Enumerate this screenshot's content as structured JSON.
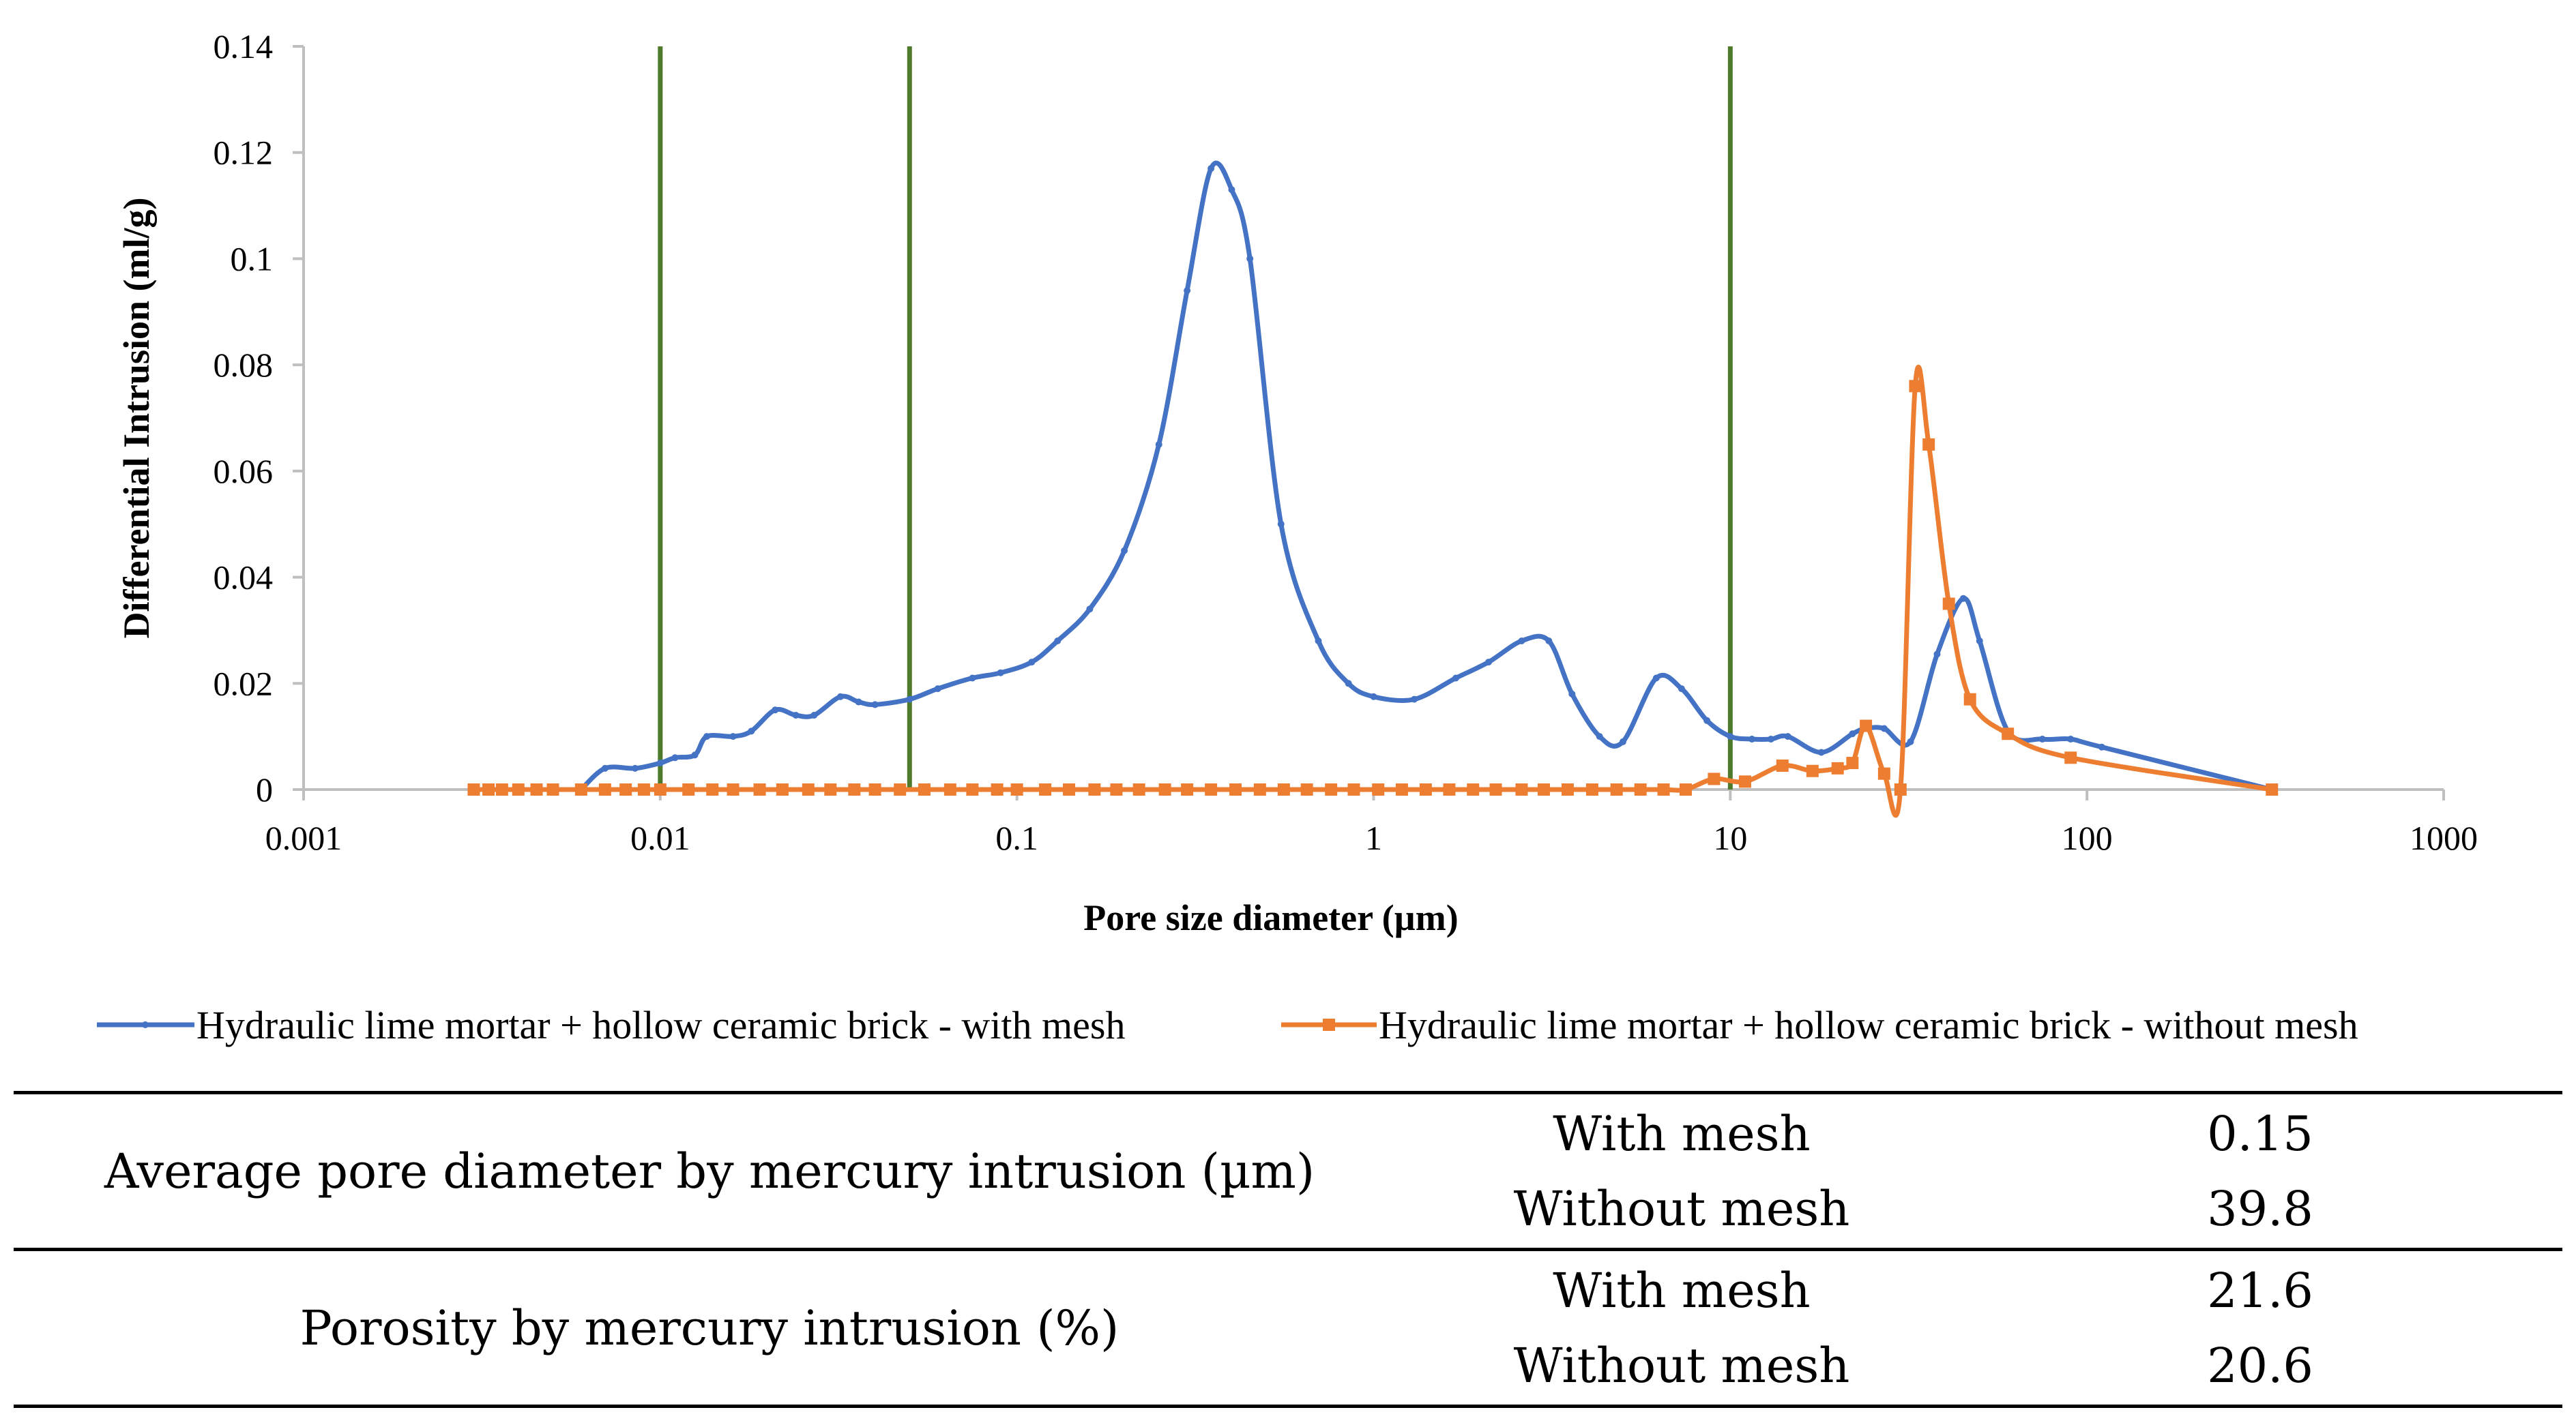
{
  "chart_data": {
    "type": "line",
    "title": "",
    "xlabel": "Pore size diameter (µm)",
    "ylabel": "Differential Intrusion  (ml/g)",
    "xscale": "log",
    "xlim": [
      0.001,
      1000
    ],
    "ylim": [
      0,
      0.14
    ],
    "x_ticks": [
      "0.001",
      "0.01",
      "0.1",
      "1",
      "10",
      "100",
      "1000"
    ],
    "y_ticks": [
      "0",
      "0.02",
      "0.04",
      "0.06",
      "0.08",
      "0.1",
      "0.12",
      "0.14"
    ],
    "grid": false,
    "legend_position": "bottom",
    "vertical_lines": [
      0.01,
      0.05,
      10
    ],
    "vertical_line_color": "#4E7A2C",
    "series": [
      {
        "name": "Hydraulic lime mortar + hollow ceramic brick - with mesh",
        "color": "#4472C4",
        "marker": "small",
        "points": [
          [
            0.006,
            0.0
          ],
          [
            0.007,
            0.004
          ],
          [
            0.0085,
            0.004
          ],
          [
            0.01,
            0.005
          ],
          [
            0.011,
            0.006
          ],
          [
            0.0125,
            0.0065
          ],
          [
            0.0135,
            0.01
          ],
          [
            0.016,
            0.01
          ],
          [
            0.018,
            0.011
          ],
          [
            0.021,
            0.015
          ],
          [
            0.024,
            0.014
          ],
          [
            0.027,
            0.014
          ],
          [
            0.032,
            0.0175
          ],
          [
            0.036,
            0.0165
          ],
          [
            0.04,
            0.016
          ],
          [
            0.05,
            0.017
          ],
          [
            0.06,
            0.019
          ],
          [
            0.075,
            0.021
          ],
          [
            0.09,
            0.022
          ],
          [
            0.11,
            0.024
          ],
          [
            0.13,
            0.028
          ],
          [
            0.16,
            0.034
          ],
          [
            0.2,
            0.045
          ],
          [
            0.25,
            0.065
          ],
          [
            0.3,
            0.094
          ],
          [
            0.35,
            0.117
          ],
          [
            0.4,
            0.113
          ],
          [
            0.45,
            0.1
          ],
          [
            0.55,
            0.05
          ],
          [
            0.7,
            0.028
          ],
          [
            0.85,
            0.02
          ],
          [
            1.0,
            0.0175
          ],
          [
            1.3,
            0.017
          ],
          [
            1.7,
            0.021
          ],
          [
            2.1,
            0.024
          ],
          [
            2.6,
            0.028
          ],
          [
            3.1,
            0.028
          ],
          [
            3.6,
            0.018
          ],
          [
            4.3,
            0.01
          ],
          [
            5.0,
            0.009
          ],
          [
            6.2,
            0.021
          ],
          [
            7.3,
            0.019
          ],
          [
            8.6,
            0.013
          ],
          [
            10.0,
            0.01
          ],
          [
            11.5,
            0.0095
          ],
          [
            13.0,
            0.0095
          ],
          [
            14.5,
            0.01
          ],
          [
            18.0,
            0.007
          ],
          [
            22.0,
            0.0105
          ],
          [
            24.0,
            0.0115
          ],
          [
            27.0,
            0.0115
          ],
          [
            32.0,
            0.009
          ],
          [
            38.0,
            0.0255
          ],
          [
            45.0,
            0.036
          ],
          [
            50.0,
            0.028
          ],
          [
            60.0,
            0.011
          ],
          [
            75.0,
            0.0095
          ],
          [
            90.0,
            0.0095
          ],
          [
            110.0,
            0.008
          ],
          [
            330.0,
            0.0
          ]
        ]
      },
      {
        "name": "Hydraulic lime mortar + hollow ceramic brick - without mesh",
        "color": "#ED7D31",
        "marker": "square",
        "points": [
          [
            0.003,
            0.0
          ],
          [
            0.0033,
            0.0
          ],
          [
            0.0036,
            0.0
          ],
          [
            0.004,
            0.0
          ],
          [
            0.0045,
            0.0
          ],
          [
            0.005,
            0.0
          ],
          [
            0.006,
            0.0
          ],
          [
            0.007,
            0.0
          ],
          [
            0.008,
            0.0
          ],
          [
            0.009,
            0.0
          ],
          [
            0.01,
            0.0
          ],
          [
            0.012,
            0.0
          ],
          [
            0.014,
            0.0
          ],
          [
            0.016,
            0.0
          ],
          [
            0.019,
            0.0
          ],
          [
            0.022,
            0.0
          ],
          [
            0.026,
            0.0
          ],
          [
            0.03,
            0.0
          ],
          [
            0.035,
            0.0
          ],
          [
            0.04,
            0.0
          ],
          [
            0.047,
            0.0
          ],
          [
            0.055,
            0.0
          ],
          [
            0.065,
            0.0
          ],
          [
            0.075,
            0.0
          ],
          [
            0.088,
            0.0
          ],
          [
            0.1,
            0.0
          ],
          [
            0.12,
            0.0
          ],
          [
            0.14,
            0.0
          ],
          [
            0.165,
            0.0
          ],
          [
            0.19,
            0.0
          ],
          [
            0.22,
            0.0
          ],
          [
            0.26,
            0.0
          ],
          [
            0.3,
            0.0
          ],
          [
            0.35,
            0.0
          ],
          [
            0.41,
            0.0
          ],
          [
            0.48,
            0.0
          ],
          [
            0.56,
            0.0
          ],
          [
            0.65,
            0.0
          ],
          [
            0.76,
            0.0
          ],
          [
            0.88,
            0.0
          ],
          [
            1.03,
            0.0
          ],
          [
            1.2,
            0.0
          ],
          [
            1.4,
            0.0
          ],
          [
            1.63,
            0.0
          ],
          [
            1.9,
            0.0
          ],
          [
            2.2,
            0.0
          ],
          [
            2.6,
            0.0
          ],
          [
            3.0,
            0.0
          ],
          [
            3.5,
            0.0
          ],
          [
            4.1,
            0.0
          ],
          [
            4.8,
            0.0
          ],
          [
            5.6,
            0.0
          ],
          [
            6.5,
            0.0
          ],
          [
            7.5,
            0.0
          ],
          [
            9.0,
            0.002
          ],
          [
            11.0,
            0.0015
          ],
          [
            14.0,
            0.0045
          ],
          [
            17.0,
            0.0035
          ],
          [
            20.0,
            0.004
          ],
          [
            22.0,
            0.005
          ],
          [
            24.0,
            0.012
          ],
          [
            27.0,
            0.003
          ],
          [
            30.0,
            0.0
          ],
          [
            33.0,
            0.076
          ],
          [
            36.0,
            0.065
          ],
          [
            41.0,
            0.035
          ],
          [
            47.0,
            0.017
          ],
          [
            60.0,
            0.0105
          ],
          [
            90.0,
            0.006
          ],
          [
            330.0,
            0.0
          ]
        ]
      }
    ]
  },
  "summary_table": {
    "rows": [
      {
        "metric": "Average pore diameter by mercury intrusion (µm)",
        "with_label": "With mesh",
        "with_value": "0.15",
        "without_label": "Without mesh",
        "without_value": "39.8"
      },
      {
        "metric": "Porosity by mercury intrusion (%)",
        "with_label": "With mesh",
        "with_value": "21.6",
        "without_label": "Without mesh",
        "without_value": "20.6"
      }
    ]
  }
}
